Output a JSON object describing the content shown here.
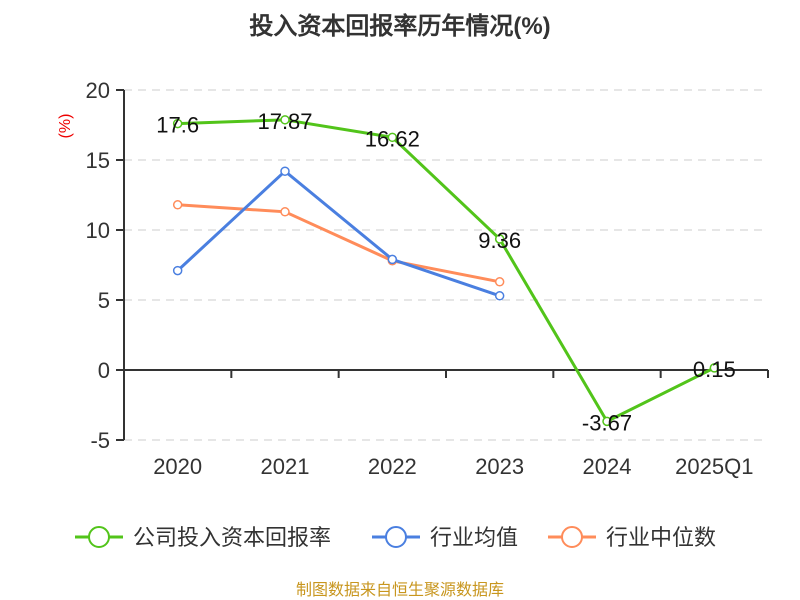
{
  "chart_data": {
    "type": "line",
    "title": "投入资本回报率历年情况(%)",
    "ylabel": "(%)",
    "xlabel": "",
    "categories": [
      "2020",
      "2021",
      "2022",
      "2023",
      "2024",
      "2025Q1"
    ],
    "ylim": [
      -5,
      20
    ],
    "yticks": [
      -5,
      0,
      5,
      10,
      15,
      20
    ],
    "grid": true,
    "legend_position": "bottom",
    "series": [
      {
        "name": "公司投入资本回报率",
        "color": "#52c41a",
        "values": [
          17.6,
          17.87,
          16.62,
          9.36,
          -3.67,
          0.15
        ],
        "labels": [
          "17.6",
          "17.87",
          "16.62",
          "9.36",
          "-3.67",
          "0.15"
        ]
      },
      {
        "name": "行业均值",
        "color": "#4a7fe0",
        "values": [
          7.1,
          14.2,
          7.9,
          5.3,
          null,
          null
        ]
      },
      {
        "name": "行业中位数",
        "color": "#ff8c5a",
        "values": [
          11.8,
          11.3,
          7.8,
          6.3,
          null,
          null
        ]
      }
    ]
  },
  "footer": "制图数据来自恒生聚源数据库"
}
